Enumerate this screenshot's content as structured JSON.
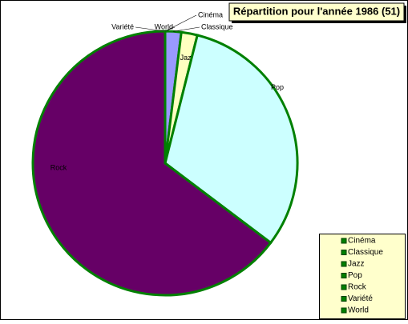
{
  "chart_data": {
    "type": "pie",
    "title": "Répartition pour l'année 1986 (51)",
    "categories": [
      "Cinéma",
      "Classique",
      "Jazz",
      "Pop",
      "Rock",
      "Variété",
      "World"
    ],
    "values": [
      0,
      1,
      1,
      16,
      33,
      0,
      0
    ],
    "colors": [
      "#ff9999",
      "#9999ff",
      "#ffffc0",
      "#ccffff",
      "#660066",
      "#ffcc99",
      "#99cc00"
    ],
    "border_color": "#008000",
    "legend": "bottom-right"
  }
}
